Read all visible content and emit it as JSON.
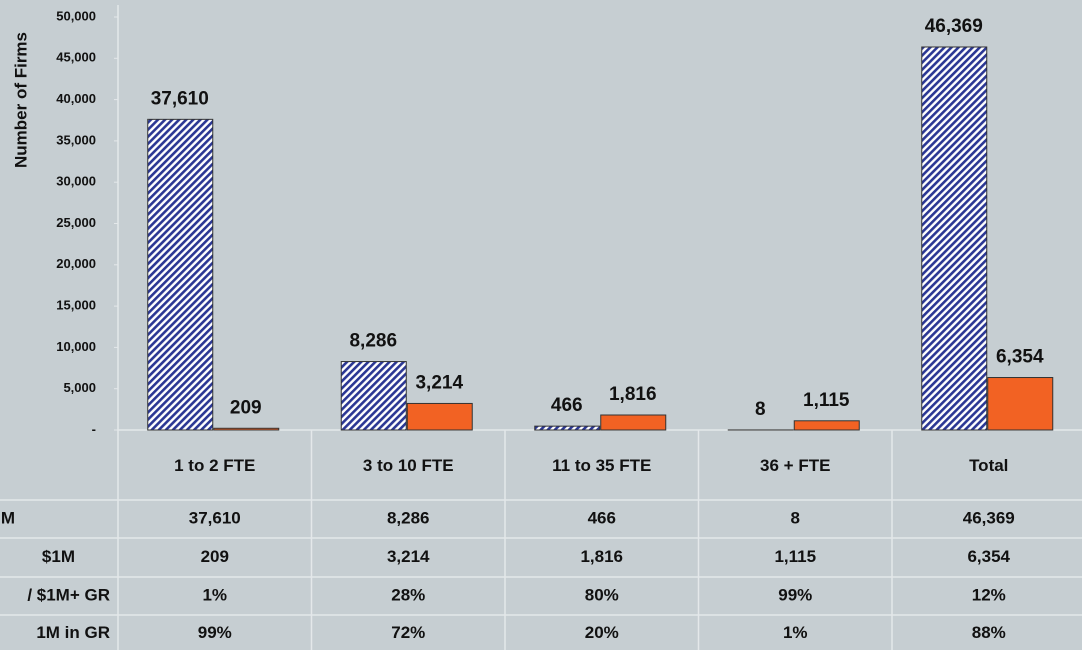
{
  "chart_data": {
    "type": "bar",
    "y_label": "Number of Firms",
    "categories": [
      "1 to 2 FTE",
      "3 to 10 FTE",
      "11 to 35 FTE",
      "36 + FTE",
      "Total"
    ],
    "series": [
      {
        "name": "M",
        "color": "#2b3794",
        "pattern": "hatch",
        "values": [
          37610,
          8286,
          466,
          8,
          46369
        ],
        "value_labels": [
          "37,610",
          "8,286",
          "466",
          "8",
          "46,369"
        ]
      },
      {
        "name": "$1M",
        "color": "#f26223",
        "values": [
          209,
          3214,
          1816,
          1115,
          6354
        ],
        "value_labels": [
          "209",
          "3,214",
          "1,816",
          "1,115",
          "6,354"
        ]
      }
    ],
    "table_rows": [
      {
        "name": "/ $1M+ GR",
        "values": [
          1,
          28,
          80,
          99,
          12
        ],
        "value_labels": [
          "1%",
          "28%",
          "80%",
          "99%",
          "12%"
        ]
      },
      {
        "name": "1M in GR",
        "values": [
          99,
          72,
          20,
          1,
          88
        ],
        "value_labels": [
          "99%",
          "72%",
          "20%",
          "1%",
          "88%"
        ]
      }
    ],
    "ylim": [
      0,
      50000
    ],
    "yticks": [
      {
        "value": 0,
        "label": "-"
      },
      {
        "value": 5000,
        "label": "5,000"
      },
      {
        "value": 10000,
        "label": "10,000"
      },
      {
        "value": 15000,
        "label": "15,000"
      },
      {
        "value": 20000,
        "label": "20,000"
      },
      {
        "value": 25000,
        "label": "25,000"
      },
      {
        "value": 30000,
        "label": "30,000"
      },
      {
        "value": 35000,
        "label": "35,000"
      },
      {
        "value": 40000,
        "label": "40,000"
      },
      {
        "value": 45000,
        "label": "45,000"
      },
      {
        "value": 50000,
        "label": "50,000"
      }
    ]
  }
}
